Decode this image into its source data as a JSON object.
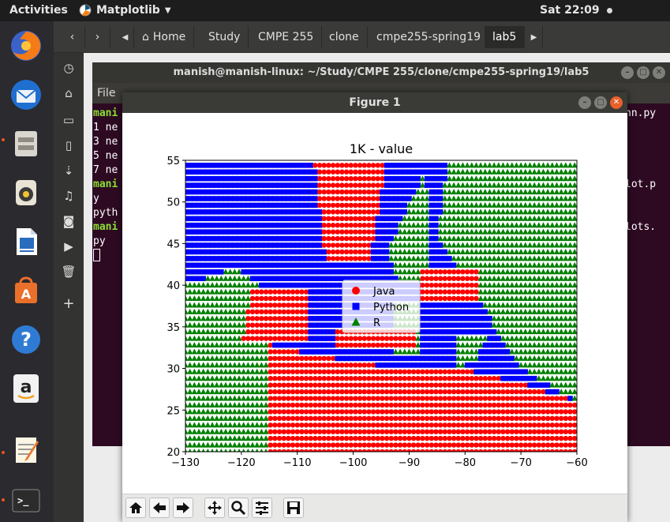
{
  "topbar": {
    "activities": "Activities",
    "app_name": "Matplotlib",
    "clock": "Sat 22:09"
  },
  "dock": {
    "items": [
      "firefox",
      "thunderbird",
      "files",
      "rhythmbox",
      "libreoffice-writer",
      "software-center",
      "help",
      "amazon",
      "text-editor",
      "terminal"
    ]
  },
  "navbar": {
    "crumbs": [
      "Home",
      "Study",
      "CMPE 255",
      "clone",
      "cmpe255-spring19",
      "lab5"
    ]
  },
  "terminal": {
    "title": "manish@manish-linux: ~/Study/CMPE 255/clone/cmpe255-spring19/lab5",
    "menu": "File",
    "lines": [
      "mani",
      "1 ne",
      "3 ne",
      "5 ne",
      "7 ne",
      "mani",
      "y",
      "pyth",
      "mani",
      "py"
    ],
    "right_lines": [
      "nn.py",
      "lot.p",
      "lots."
    ]
  },
  "figure": {
    "title": "Figure 1"
  },
  "chart_data": {
    "type": "scatter",
    "title": "1K - value",
    "xlabel": "",
    "ylabel": "",
    "xlim": [
      -130,
      -60
    ],
    "ylim": [
      20,
      55
    ],
    "xticks": [
      "−130",
      "−120",
      "−110",
      "−100",
      "−90",
      "−80",
      "−70",
      "−60"
    ],
    "yticks": [
      "20",
      "25",
      "30",
      "35",
      "40",
      "45",
      "50",
      "55"
    ],
    "grid": false,
    "legend_position": "center",
    "grid_step": 0.8,
    "series": [
      {
        "name": "Java",
        "color": "#ff0000",
        "marker": "circle"
      },
      {
        "name": "Python",
        "color": "#0000ff",
        "marker": "square"
      },
      {
        "name": "R",
        "color": "#008000",
        "marker": "triangle"
      }
    ],
    "regions": {
      "java": [
        [
          [
            -115,
            20
          ],
          [
            -60,
            20
          ],
          [
            -60,
            26
          ],
          [
            -69,
            28
          ],
          [
            -81,
            30
          ],
          [
            -93,
            30
          ],
          [
            -101,
            31
          ],
          [
            -110,
            32
          ],
          [
            -115,
            33
          ]
        ],
        [
          [
            -118,
            39.5
          ],
          [
            -108,
            39.5
          ],
          [
            -108,
            33
          ],
          [
            -120,
            33
          ]
        ],
        [
          [
            -107,
            55
          ],
          [
            -94,
            55
          ],
          [
            -97,
            43
          ],
          [
            -105,
            43
          ]
        ],
        [
          [
            -88,
            42
          ],
          [
            -78,
            42
          ],
          [
            -78,
            38
          ],
          [
            -88,
            38
          ]
        ],
        [
          [
            -103,
            32.5
          ],
          [
            -89,
            32.5
          ],
          [
            -89,
            35
          ],
          [
            -103,
            35
          ]
        ]
      ],
      "r": [
        [
          [
            -130,
            20
          ],
          [
            -115,
            20
          ],
          [
            -115,
            33
          ],
          [
            -117,
            40
          ],
          [
            -121,
            42
          ],
          [
            -130,
            40
          ]
        ],
        [
          [
            -83,
            55
          ],
          [
            -60,
            55
          ],
          [
            -60,
            26
          ],
          [
            -70,
            30
          ],
          [
            -73,
            33
          ],
          [
            -79,
            40
          ],
          [
            -85,
            46
          ]
        ],
        [
          [
            -94,
            44
          ],
          [
            -87,
            54
          ],
          [
            -86,
            40
          ],
          [
            -92,
            40
          ]
        ],
        [
          [
            -93,
            38
          ],
          [
            -88,
            38
          ],
          [
            -88,
            32
          ],
          [
            -93,
            32
          ]
        ],
        [
          [
            -82,
            34
          ],
          [
            -76,
            34
          ],
          [
            -78,
            31
          ],
          [
            -82,
            30
          ]
        ]
      ]
    }
  }
}
